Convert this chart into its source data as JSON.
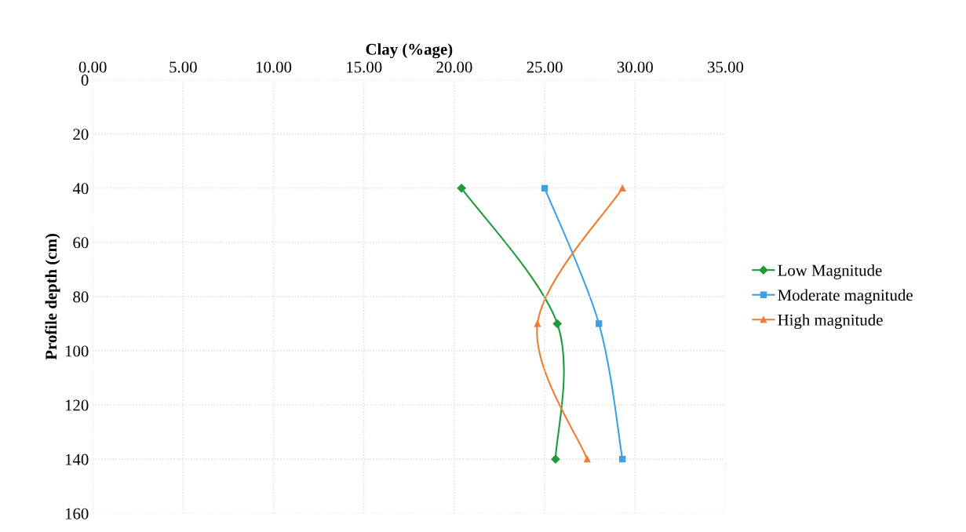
{
  "chart_data": {
    "type": "line",
    "xlabel": "Clay (%age)",
    "ylabel": "Profile depth (cm)",
    "xlim": [
      0,
      35
    ],
    "xticks": [
      {
        "value": 0,
        "label": "0.00"
      },
      {
        "value": 5,
        "label": "5.00"
      },
      {
        "value": 10,
        "label": "10.00"
      },
      {
        "value": 15,
        "label": "15.00"
      },
      {
        "value": 20,
        "label": "20.00"
      },
      {
        "value": 25,
        "label": "25.00"
      },
      {
        "value": 30,
        "label": "30.00"
      },
      {
        "value": 35,
        "label": "35.00"
      }
    ],
    "ylim": [
      160,
      0
    ],
    "yticks": [
      0,
      20,
      40,
      60,
      80,
      100,
      120,
      140,
      160
    ],
    "grid": true,
    "legend": "right",
    "line_style": "solid",
    "series": [
      {
        "name": "Low Magnitude",
        "color": "#1e9b3c",
        "marker": "diamond",
        "x": [
          20.4,
          25.7,
          25.6
        ],
        "values": [
          40,
          90,
          140
        ]
      },
      {
        "name": "Moderate magnitude",
        "color": "#3fa0e0",
        "marker": "square",
        "x": [
          25.0,
          28.0,
          29.3
        ],
        "values": [
          40,
          90,
          140
        ]
      },
      {
        "name": "High magnitude",
        "color": "#ee7d31",
        "marker": "triangle",
        "x": [
          29.3,
          24.6,
          27.35
        ],
        "values": [
          40,
          90,
          140
        ]
      }
    ]
  }
}
